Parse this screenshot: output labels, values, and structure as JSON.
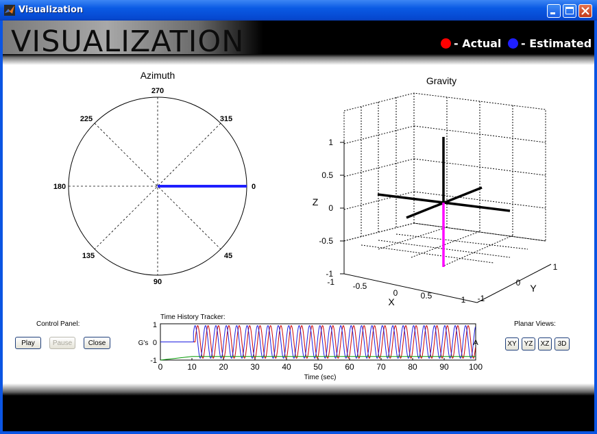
{
  "window": {
    "title": "Visualization"
  },
  "header": {
    "logo_text": "VISUALIZATION",
    "legend": [
      {
        "label": "- Actual",
        "color": "#ff0000"
      },
      {
        "label": "- Estimated",
        "color": "#1f1fff"
      }
    ]
  },
  "azimuth": {
    "title": "Azimuth",
    "tick_labels": [
      "270",
      "315",
      "0",
      "45",
      "90",
      "135",
      "180",
      "225"
    ],
    "estimated_angle_deg": 0,
    "estimated_color": "#1f1fff"
  },
  "gravity": {
    "title": "Gravity",
    "xlabel": "X",
    "ylabel": "Y",
    "zlabel": "Z",
    "z_ticks": [
      "1",
      "0.5",
      "0",
      "-0.5",
      "-1"
    ],
    "x_ticks": [
      "-1",
      "-0.5",
      "0",
      "0.5",
      "1"
    ],
    "y_ticks": [
      "1",
      "0",
      "-1"
    ],
    "vector_color": "#ff00ff"
  },
  "control_panel": {
    "label": "Control Panel:",
    "play": "Play",
    "pause": "Pause",
    "close": "Close"
  },
  "time_history": {
    "label": "Time History Tracker:",
    "ylabel": "G's",
    "xlabel": "Time (sec)",
    "y_ticks": [
      "1",
      "0",
      "-1"
    ],
    "x_ticks": [
      "0",
      "10",
      "20",
      "30",
      "40",
      "50",
      "60",
      "70",
      "80",
      "90",
      "100"
    ],
    "edge_text": "A"
  },
  "planar_views": {
    "label": "Planar Views:",
    "buttons": [
      "XY",
      "YZ",
      "XZ",
      "3D"
    ]
  },
  "chart_data": {
    "type": "line",
    "xlabel": "Time (sec)",
    "ylabel": "G's",
    "xlim": [
      0,
      100
    ],
    "ylim": [
      -1,
      1
    ],
    "series": [
      {
        "color": "#cc0000",
        "x": [
          0,
          10.5,
          100
        ],
        "values": [
          0,
          0,
          0
        ],
        "oscillation": {
          "start": 11,
          "period": 3.3,
          "amplitude": 0.9
        }
      },
      {
        "color": "#1c1ce0",
        "x": [
          0,
          10.5,
          100
        ],
        "values": [
          0,
          -0.5,
          0
        ],
        "oscillation": {
          "start": 10.5,
          "period": 3.3,
          "amplitude": 0.9
        }
      },
      {
        "color": "#009900",
        "x": [
          0,
          10,
          12,
          100
        ],
        "values": [
          -1,
          -0.8,
          -0.8,
          -0.8
        ]
      }
    ]
  }
}
